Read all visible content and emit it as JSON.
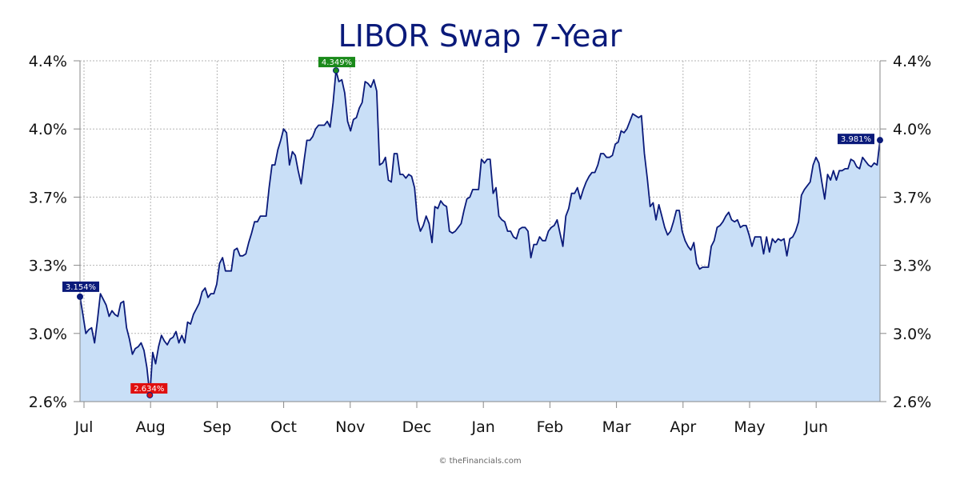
{
  "chart_data": {
    "type": "area",
    "title": "LIBOR Swap 7-Year",
    "xlabel": "",
    "ylabel": "",
    "ylim": [
      2.6,
      4.4
    ],
    "y_ticks": [
      "2.6%",
      "3.0%",
      "3.3%",
      "3.7%",
      "4.0%",
      "4.4%"
    ],
    "x_ticks": [
      "Jul",
      "Aug",
      "Sep",
      "Oct",
      "Nov",
      "Dec",
      "Jan",
      "Feb",
      "Mar",
      "Apr",
      "May",
      "Jun"
    ],
    "grid": true,
    "colors": {
      "line": "#0a1a7a",
      "fill": "#c9dff7",
      "high": "#1a8a1a",
      "low": "#e01010",
      "endpoint": "#0a1a7a"
    },
    "annotations": [
      {
        "label": "3.154%",
        "kind": "start",
        "color": "#0a1a7a"
      },
      {
        "label": "2.634%",
        "kind": "low",
        "color": "#e01010"
      },
      {
        "label": "4.349%",
        "kind": "high",
        "color": "#1a8a1a"
      },
      {
        "label": "3.981%",
        "kind": "end",
        "color": "#0a1a7a"
      }
    ],
    "series": [
      {
        "values": [
          3.154,
          3.06,
          2.96,
          2.98,
          2.99,
          2.91,
          3.03,
          3.17,
          3.14,
          3.11,
          3.05,
          3.08,
          3.06,
          3.05,
          3.12,
          3.13,
          2.99,
          2.93,
          2.85,
          2.88,
          2.89,
          2.91,
          2.87,
          2.78,
          2.634,
          2.86,
          2.8,
          2.89,
          2.95,
          2.92,
          2.9,
          2.93,
          2.94,
          2.97,
          2.91,
          2.95,
          2.91,
          3.02,
          3.01,
          3.06,
          3.09,
          3.12,
          3.18,
          3.2,
          3.15,
          3.17,
          3.17,
          3.22,
          3.33,
          3.36,
          3.29,
          3.29,
          3.29,
          3.4,
          3.41,
          3.37,
          3.37,
          3.38,
          3.44,
          3.49,
          3.55,
          3.55,
          3.58,
          3.58,
          3.58,
          3.73,
          3.85,
          3.85,
          3.93,
          3.98,
          4.04,
          4.02,
          3.85,
          3.92,
          3.9,
          3.82,
          3.75,
          3.87,
          3.98,
          3.98,
          4.0,
          4.04,
          4.06,
          4.06,
          4.06,
          4.08,
          4.05,
          4.18,
          4.349,
          4.29,
          4.3,
          4.23,
          4.08,
          4.03,
          4.09,
          4.1,
          4.15,
          4.18,
          4.29,
          4.28,
          4.26,
          4.3,
          4.24,
          3.85,
          3.86,
          3.89,
          3.77,
          3.76,
          3.91,
          3.91,
          3.8,
          3.8,
          3.78,
          3.8,
          3.79,
          3.73,
          3.56,
          3.5,
          3.53,
          3.58,
          3.54,
          3.44,
          3.63,
          3.62,
          3.66,
          3.64,
          3.63,
          3.5,
          3.49,
          3.5,
          3.52,
          3.54,
          3.61,
          3.67,
          3.68,
          3.72,
          3.72,
          3.72,
          3.88,
          3.86,
          3.88,
          3.88,
          3.7,
          3.73,
          3.58,
          3.56,
          3.55,
          3.5,
          3.5,
          3.47,
          3.46,
          3.51,
          3.52,
          3.52,
          3.5,
          3.36,
          3.43,
          3.43,
          3.47,
          3.45,
          3.45,
          3.5,
          3.52,
          3.53,
          3.56,
          3.49,
          3.42,
          3.58,
          3.62,
          3.7,
          3.7,
          3.73,
          3.67,
          3.72,
          3.76,
          3.79,
          3.81,
          3.81,
          3.85,
          3.91,
          3.91,
          3.89,
          3.89,
          3.9,
          3.96,
          3.97,
          4.03,
          4.02,
          4.04,
          4.08,
          4.12,
          4.11,
          4.1,
          4.11,
          3.91,
          3.78,
          3.63,
          3.65,
          3.56,
          3.64,
          3.58,
          3.52,
          3.48,
          3.5,
          3.55,
          3.61,
          3.61,
          3.5,
          3.45,
          3.42,
          3.4,
          3.44,
          3.33,
          3.3,
          3.31,
          3.31,
          3.31,
          3.42,
          3.45,
          3.52,
          3.53,
          3.55,
          3.58,
          3.6,
          3.56,
          3.55,
          3.56,
          3.52,
          3.53,
          3.53,
          3.48,
          3.42,
          3.47,
          3.47,
          3.47,
          3.38,
          3.47,
          3.39,
          3.46,
          3.44,
          3.46,
          3.45,
          3.46,
          3.37,
          3.46,
          3.47,
          3.5,
          3.55,
          3.69,
          3.72,
          3.74,
          3.76,
          3.85,
          3.89,
          3.86,
          3.76,
          3.67,
          3.8,
          3.77,
          3.82,
          3.77,
          3.82,
          3.82,
          3.83,
          3.83,
          3.88,
          3.87,
          3.84,
          3.83,
          3.89,
          3.87,
          3.85,
          3.84,
          3.86,
          3.85,
          3.981
        ]
      }
    ]
  },
  "footer": {
    "credit": "© theFinancials.com"
  }
}
